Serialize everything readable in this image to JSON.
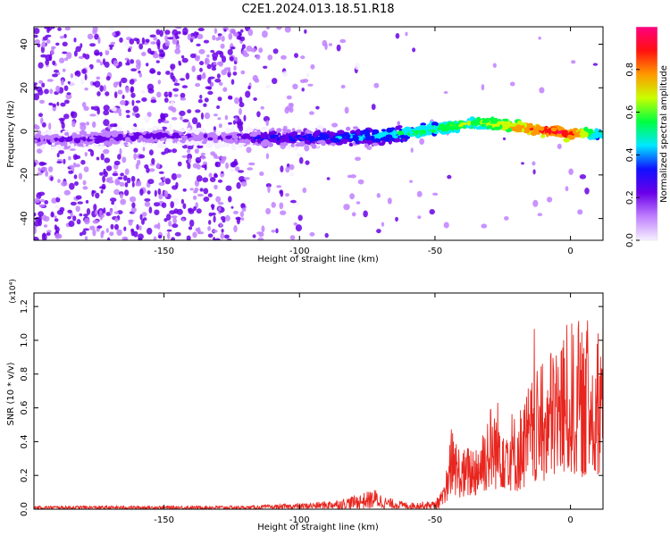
{
  "title": "C2E1.2024.013.18.51.R18",
  "chart_data": [
    {
      "type": "heatmap",
      "xlabel": "Height of straight line (km)",
      "ylabel": "Frequency (Hz)",
      "xlim": [
        -198,
        12
      ],
      "ylim": [
        -50,
        48
      ],
      "xticks": [
        -150,
        -100,
        -50,
        0
      ],
      "yticks": [
        -40,
        -20,
        0,
        20,
        40
      ],
      "colorbar": {
        "label": "Normalized spectral amplitude",
        "range": [
          0.0,
          1.0
        ],
        "ticks": [
          0.0,
          0.2,
          0.4,
          0.6,
          0.8
        ],
        "colors": [
          "#f6f0ff",
          "#c080ff",
          "#6a00e8",
          "#1010ff",
          "#00e8ff",
          "#00ff40",
          "#c8ff00",
          "#ff9900",
          "#ff1010",
          "#ff0080"
        ]
      },
      "ridge": {
        "x": [
          -190,
          -170,
          -150,
          -130,
          -110,
          -90,
          -70,
          -55,
          -45,
          -35,
          -25,
          -15,
          -5,
          0,
          10
        ],
        "y": [
          -4,
          -3,
          -2,
          -3,
          -3,
          -3,
          -2,
          0,
          2,
          4,
          3,
          1,
          0,
          -1,
          -1
        ],
        "amplitude": [
          0.2,
          0.25,
          0.22,
          0.18,
          0.3,
          0.35,
          0.45,
          0.55,
          0.6,
          0.6,
          0.7,
          0.85,
          0.95,
          0.9,
          0.5
        ]
      }
    },
    {
      "type": "line",
      "xlabel": "Height of straight line (km)",
      "ylabel": "SNR (10 * v/v)",
      "yscale_label": "(x10⁴)",
      "xlim": [
        -198,
        12
      ],
      "ylim": [
        0,
        1.28
      ],
      "xticks": [
        -150,
        -100,
        -50,
        0
      ],
      "yticks": [
        0.0,
        0.2,
        0.4,
        0.6,
        0.8,
        1.0,
        1.2
      ],
      "color": "#e8261f",
      "envelope": {
        "x": [
          -198,
          -120,
          -105,
          -95,
          -85,
          -78,
          -72,
          -68,
          -60,
          -50,
          -46,
          -44,
          -40,
          -35,
          -30,
          -25,
          -20,
          -15,
          -10,
          -5,
          0,
          5,
          10,
          12
        ],
        "y": [
          0.02,
          0.02,
          0.03,
          0.04,
          0.06,
          0.09,
          0.12,
          0.07,
          0.04,
          0.05,
          0.15,
          0.35,
          0.25,
          0.3,
          0.45,
          0.48,
          0.4,
          0.55,
          0.62,
          0.75,
          0.8,
          0.75,
          0.82,
          0.9
        ]
      }
    }
  ]
}
